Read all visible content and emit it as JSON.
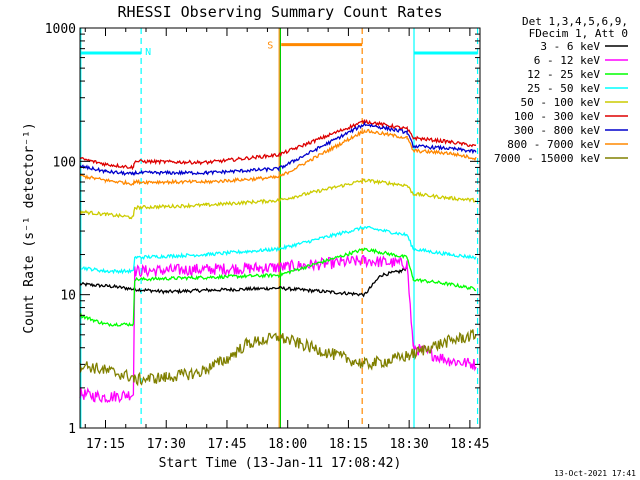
{
  "chart_data": {
    "type": "line",
    "title": "RHESSI Observing Summary Count Rates",
    "xlabel": "Start Time (13-Jan-11 17:08:42)",
    "ylabel": "Count Rate (s⁻¹ detector⁻¹)",
    "timestamp": "13-Oct-2021 17:41",
    "y_scale": "log",
    "ylim": [
      1,
      1000
    ],
    "xlim_minutes": [
      1028.7,
      1127.5
    ],
    "x_ticks": [
      {
        "t": 1035,
        "label": "17:15"
      },
      {
        "t": 1050,
        "label": "17:30"
      },
      {
        "t": 1065,
        "label": "17:45"
      },
      {
        "t": 1080,
        "label": "18:00"
      },
      {
        "t": 1095,
        "label": "18:15"
      },
      {
        "t": 1110,
        "label": "18:30"
      },
      {
        "t": 1125,
        "label": "18:45"
      }
    ],
    "y_ticks": [
      {
        "v": 1,
        "label": "1"
      },
      {
        "v": 10,
        "label": "10"
      },
      {
        "v": 100,
        "label": "100"
      },
      {
        "v": 1000,
        "label": "1000"
      }
    ],
    "legend_header": [
      "Det 1,3,4,5,6,9,",
      "FDecim 1, Att 0"
    ],
    "series": [
      {
        "name": "3 - 6 keV",
        "color": "#000000",
        "points": [
          [
            1028.7,
            12
          ],
          [
            1037,
            11.5
          ],
          [
            1041.9,
            11
          ],
          [
            1050,
            10.5
          ],
          [
            1060,
            10.8
          ],
          [
            1070,
            11
          ],
          [
            1077.8,
            11.2
          ],
          [
            1099,
            10
          ],
          [
            1103,
            14
          ],
          [
            1108,
            15
          ],
          [
            1109.5,
            16
          ]
        ]
      },
      {
        "name": "6 - 12 keV",
        "color": "#ff00ff",
        "points": [
          [
            1028.7,
            1.8
          ],
          [
            1035,
            1.7
          ],
          [
            1041.9,
            1.8
          ],
          [
            1042.2,
            15
          ],
          [
            1060,
            15.5
          ],
          [
            1077.8,
            16
          ],
          [
            1099,
            18
          ],
          [
            1109.5,
            17
          ],
          [
            1111,
            4
          ],
          [
            1120,
            3.2
          ],
          [
            1126.5,
            3
          ]
        ]
      },
      {
        "name": "12 - 25 keV",
        "color": "#00ff00",
        "points": [
          [
            1028.7,
            7
          ],
          [
            1035,
            6
          ],
          [
            1041.9,
            6
          ],
          [
            1042.2,
            13
          ],
          [
            1060,
            13.5
          ],
          [
            1077.8,
            14
          ],
          [
            1099,
            22
          ],
          [
            1109.5,
            19
          ],
          [
            1111,
            13
          ],
          [
            1120,
            12
          ],
          [
            1126.5,
            11
          ]
        ]
      },
      {
        "name": "25 - 50 keV",
        "color": "#00ffff",
        "points": [
          [
            1028.7,
            16
          ],
          [
            1035,
            15
          ],
          [
            1041.9,
            15
          ],
          [
            1042.2,
            19
          ],
          [
            1060,
            20
          ],
          [
            1077.8,
            22
          ],
          [
            1099,
            32
          ],
          [
            1109.5,
            28
          ],
          [
            1111,
            22
          ],
          [
            1120,
            20
          ],
          [
            1126.5,
            19
          ]
        ]
      },
      {
        "name": "50 - 100 keV",
        "color": "#cccc00",
        "points": [
          [
            1028.7,
            42
          ],
          [
            1035,
            40
          ],
          [
            1041.9,
            38
          ],
          [
            1042.2,
            45
          ],
          [
            1060,
            47
          ],
          [
            1077.8,
            51
          ],
          [
            1099,
            72
          ],
          [
            1109.5,
            66
          ],
          [
            1111,
            57
          ],
          [
            1120,
            53
          ],
          [
            1126.5,
            51
          ]
        ]
      },
      {
        "name": "100 - 300 keV",
        "color": "#dd0000",
        "points": [
          [
            1028.7,
            105
          ],
          [
            1035,
            95
          ],
          [
            1041.9,
            90
          ],
          [
            1042.2,
            100
          ],
          [
            1060,
            98
          ],
          [
            1077.8,
            112
          ],
          [
            1099,
            200
          ],
          [
            1109.5,
            175
          ],
          [
            1111,
            150
          ],
          [
            1120,
            140
          ],
          [
            1126.5,
            130
          ]
        ]
      },
      {
        "name": "300 - 800 keV",
        "color": "#0000cc",
        "points": [
          [
            1028.7,
            92
          ],
          [
            1035,
            84
          ],
          [
            1041.9,
            80
          ],
          [
            1042.2,
            82
          ],
          [
            1060,
            82
          ],
          [
            1077.8,
            88
          ],
          [
            1099,
            190
          ],
          [
            1109.5,
            165
          ],
          [
            1111,
            130
          ],
          [
            1120,
            125
          ],
          [
            1126.5,
            118
          ]
        ]
      },
      {
        "name": "800 - 7000 keV",
        "color": "#ff8800",
        "points": [
          [
            1028.7,
            78
          ],
          [
            1035,
            72
          ],
          [
            1041.9,
            68
          ],
          [
            1042.2,
            70
          ],
          [
            1060,
            70
          ],
          [
            1077.8,
            76
          ],
          [
            1099,
            170
          ],
          [
            1109.5,
            150
          ],
          [
            1111,
            120
          ],
          [
            1120,
            115
          ],
          [
            1126.5,
            105
          ]
        ]
      },
      {
        "name": "7000 - 15000 keV",
        "color": "#808000",
        "points": [
          [
            1028.7,
            3
          ],
          [
            1035,
            2.7
          ],
          [
            1041.9,
            2.4
          ],
          [
            1042.2,
            2.3
          ],
          [
            1050,
            2.4
          ],
          [
            1058,
            2.6
          ],
          [
            1065,
            3.3
          ],
          [
            1070,
            4.3
          ],
          [
            1077.8,
            4.8
          ],
          [
            1099,
            3
          ],
          [
            1105,
            3.2
          ],
          [
            1110,
            3.5
          ],
          [
            1115,
            4
          ],
          [
            1120,
            4.5
          ],
          [
            1126.5,
            5
          ]
        ]
      }
    ],
    "markers": [
      {
        "label": "N",
        "color": "#00ffff",
        "t_start": 1028.7,
        "t_end": 1043.8,
        "level": 650
      },
      {
        "label": "",
        "color": "#00ffff",
        "t_start": 1111.2,
        "t_end": 1126.9,
        "level": 650
      },
      {
        "label": "S",
        "color": "#ff8800",
        "t_start": 1078.4,
        "t_end": 1098.4,
        "level": 750
      }
    ],
    "vertical_lines": [
      {
        "t": 1028.9,
        "color": "#00ffff",
        "style": "solid"
      },
      {
        "t": 1043.8,
        "color": "#00ffff",
        "style": "dashed"
      },
      {
        "t": 1077.9,
        "color": "#ff8800",
        "style": "solid"
      },
      {
        "t": 1078.2,
        "color": "#00cc00",
        "style": "solid"
      },
      {
        "t": 1098.4,
        "color": "#ff8800",
        "style": "dashed"
      },
      {
        "t": 1111.2,
        "color": "#00ffff",
        "style": "solid"
      },
      {
        "t": 1126.9,
        "color": "#00ffff",
        "style": "dashed"
      }
    ],
    "grid": false,
    "legend_position": "right"
  }
}
